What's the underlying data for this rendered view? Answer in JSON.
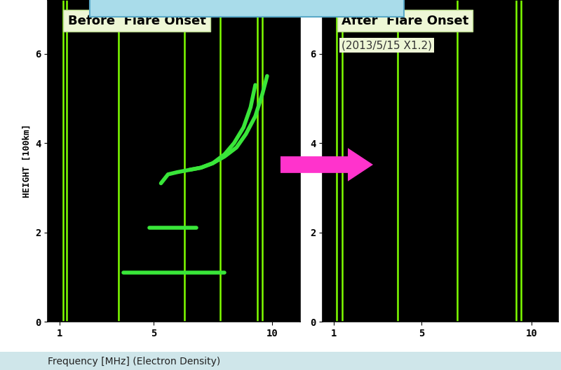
{
  "xlabel": "Frequency [MHz] (Electron Density)",
  "chart_data": [
    {
      "type": "line",
      "title": "Before  Flare Onset",
      "ylabel": "HEIGHT [100km]",
      "xlim": [
        0.5,
        11.2
      ],
      "ylim": [
        0,
        7.2
      ],
      "xticks": [
        1,
        5,
        10
      ],
      "yticks": [
        0,
        2,
        4,
        6
      ],
      "interference_frequencies": [
        1.15,
        1.3,
        3.5,
        6.3,
        7.8,
        9.4,
        9.6
      ],
      "interference_color": "#7fff00",
      "series": [
        {
          "color": "#39e639",
          "x": [
            3.7,
            4.5,
            5.5,
            6.5,
            7.5,
            8.0
          ],
          "y": [
            1.1,
            1.1,
            1.1,
            1.1,
            1.1,
            1.1
          ]
        },
        {
          "color": "#39e639",
          "x": [
            4.8,
            5.5,
            6.2,
            6.8
          ],
          "y": [
            2.1,
            2.1,
            2.1,
            2.1
          ]
        },
        {
          "color": "#39e639",
          "x": [
            5.3,
            5.6,
            6.0,
            6.5,
            7.0,
            7.5,
            8.0,
            8.4,
            8.8,
            9.1,
            9.3
          ],
          "y": [
            3.1,
            3.3,
            3.35,
            3.4,
            3.45,
            3.55,
            3.75,
            4.0,
            4.35,
            4.8,
            5.3
          ]
        },
        {
          "color": "#39e639",
          "x": [
            6.5,
            7.0,
            7.5,
            8.0,
            8.5,
            8.9,
            9.3,
            9.6,
            9.8
          ],
          "y": [
            3.4,
            3.45,
            3.55,
            3.7,
            3.9,
            4.2,
            4.6,
            5.1,
            5.5
          ]
        }
      ]
    },
    {
      "type": "line",
      "title": "After  Flare Onset",
      "subtitle": "(2013/5/15 X1.2)",
      "xlim": [
        0.5,
        11.2
      ],
      "ylim": [
        0,
        7.2
      ],
      "xticks": [
        1,
        5,
        10
      ],
      "yticks": [
        0,
        2,
        4,
        6
      ],
      "interference_frequencies": [
        1.15,
        1.4,
        3.9,
        6.6,
        9.3,
        9.5
      ],
      "interference_color": "#7fff00",
      "series": []
    }
  ]
}
